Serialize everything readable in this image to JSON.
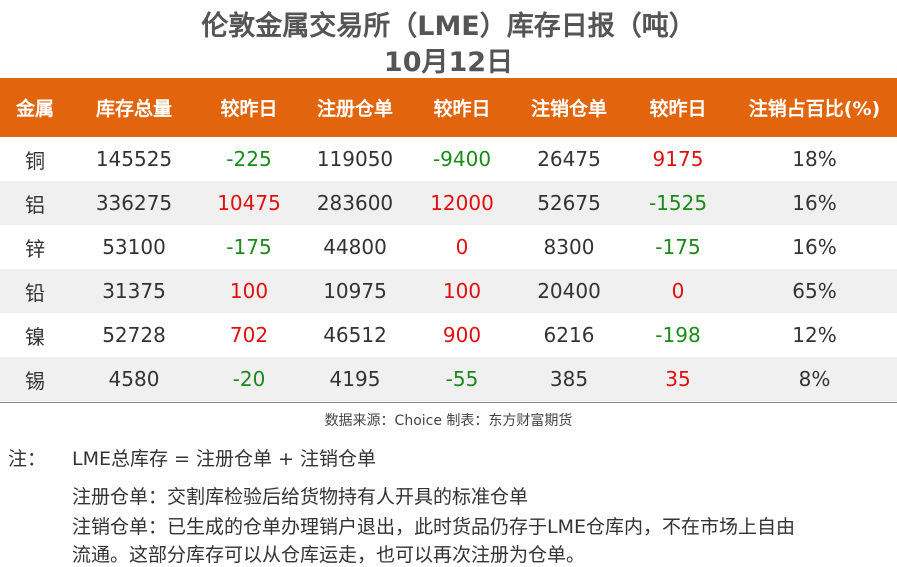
{
  "title": "伦敦金属交易所（LME）库存日报（吨）",
  "date": "10月12日",
  "headers": [
    "金属",
    "库存总量",
    "较昨日",
    "注册仓单",
    "较昨日",
    "注销仓单",
    "较昨日",
    "注销占百比(%)"
  ],
  "rows": [
    [
      "铜",
      "145525",
      "-225",
      "119050",
      "-9400",
      "26475",
      "9175",
      "18%"
    ],
    [
      "铝",
      "336275",
      "10475",
      "283600",
      "12000",
      "52675",
      "-1525",
      "16%"
    ],
    [
      "锌",
      "53100",
      "-175",
      "44800",
      "0",
      "8300",
      "-175",
      "16%"
    ],
    [
      "铅",
      "31375",
      "100",
      "10975",
      "100",
      "20400",
      "0",
      "65%"
    ],
    [
      "镍",
      "52728",
      "702",
      "46512",
      "900",
      "6216",
      "-198",
      "12%"
    ],
    [
      "锡",
      "4580",
      "-20",
      "4195",
      "-55",
      "385",
      "35",
      "8%"
    ]
  ],
  "source": "数据来源：Choice    制表：东方财富期货",
  "notes": {
    "label": "注：",
    "main": "LME总库存 = 注册仓单 + 注销仓单",
    "registered": "注册仓单：交割库检验后给货物持有人开具的标准仓单",
    "cancelled_line1": "注销仓单：已生成的仓单办理销户退出，此时货品仍存于LME仓库内，不在市场上自由",
    "cancelled_line2": "流通。这部分库存可以从仓库运走，也可以再次注册为仓单。"
  },
  "colors": {
    "header_bg": "#e2650e",
    "up": "#e01010",
    "down": "#1a8a1a"
  }
}
